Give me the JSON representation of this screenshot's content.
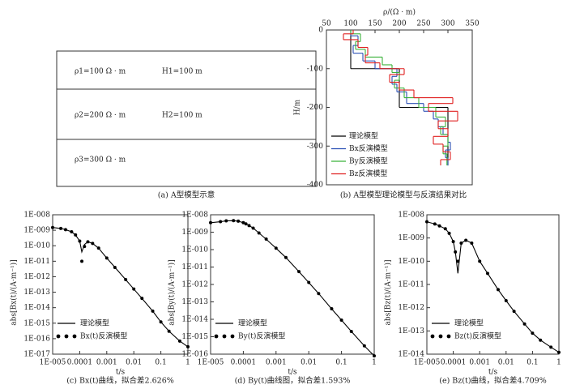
{
  "diagram": {
    "layers": [
      {
        "rho": "ρ1=100 Ω · m",
        "thickness": "H1=100 m"
      },
      {
        "rho": "ρ2=200 Ω · m",
        "thickness": "H2=100 m"
      },
      {
        "rho": "ρ3=300 Ω · m"
      }
    ],
    "caption": "(a) A型模型示意"
  },
  "chart_data": [
    {
      "type": "step",
      "caption": "(b) A型模型理论模型与反演结果对比",
      "x_label": "ρ/(Ω · m)",
      "y_label": "H/m",
      "xlim": [
        50,
        350
      ],
      "xticks": [
        50,
        100,
        150,
        200,
        250,
        300,
        350
      ],
      "ylim": [
        -400,
        0
      ],
      "yticks": [
        0,
        -100,
        -200,
        -300,
        -400
      ],
      "legend": "lower left",
      "series": [
        {
          "name": "理论模型",
          "color": "#000000",
          "values": [
            100,
            200,
            300
          ],
          "depths": [
            -100,
            -200,
            -350
          ]
        },
        {
          "name": "Bx反演模型",
          "color": "#2a4fb5",
          "values": [
            100,
            115,
            105,
            125,
            150,
            195,
            185,
            195,
            215,
            250,
            270,
            280,
            290,
            300,
            305,
            295,
            300
          ],
          "depths": [
            -15,
            -40,
            -60,
            -80,
            -100,
            -120,
            -140,
            -160,
            -190,
            -210,
            -230,
            -250,
            -270,
            -290,
            -310,
            -330,
            -350
          ]
        },
        {
          "name": "By反演模型",
          "color": "#3bb23b",
          "values": [
            100,
            120,
            110,
            130,
            165,
            185,
            200,
            190,
            210,
            240,
            275,
            295,
            285,
            300,
            290,
            298
          ],
          "depths": [
            -10,
            -30,
            -50,
            -70,
            -90,
            -110,
            -130,
            -150,
            -175,
            -200,
            -225,
            -250,
            -270,
            -300,
            -320,
            -350
          ]
        },
        {
          "name": "Bz反演模型",
          "color": "#e02020",
          "values": [
            105,
            85,
            115,
            135,
            130,
            160,
            210,
            180,
            200,
            230,
            310,
            260,
            320,
            280,
            300,
            270,
            290,
            305,
            285
          ],
          "depths": [
            -10,
            -25,
            -45,
            -65,
            -85,
            -100,
            -115,
            -135,
            -155,
            -175,
            -190,
            -210,
            -235,
            -255,
            -275,
            -295,
            -315,
            -335,
            -350
          ]
        }
      ]
    },
    {
      "type": "loglog",
      "caption": "(c) Bx(t)曲线，拟合差2.626%",
      "x_label": "t/s",
      "y_label": "abs[Bx(t)/(A·m⁻¹)]",
      "log": true,
      "legend": "lower left",
      "xlim": [
        1e-05,
        1
      ],
      "xticks": [
        {
          "value": 1e-05,
          "label": "1E-005"
        },
        0.0001,
        0.001,
        0.01,
        0.1,
        1
      ],
      "ylim": [
        1e-17,
        1e-08
      ],
      "yticks": [
        {
          "value": 1e-17,
          "label": "1E-017"
        },
        {
          "value": 1e-16,
          "label": "1E-016"
        },
        {
          "value": 1e-15,
          "label": "1E-015"
        },
        {
          "value": 1e-14,
          "label": "1E-014"
        },
        {
          "value": 1e-13,
          "label": "1E-013"
        },
        {
          "value": 1e-12,
          "label": "1E-012"
        },
        {
          "value": 1e-11,
          "label": "1E-011"
        },
        {
          "value": 1e-10,
          "label": "1E-010"
        },
        {
          "value": 1e-09,
          "label": "1E-009"
        },
        {
          "value": 1e-08,
          "label": "1E-008"
        }
      ],
      "x": [
        1e-05,
        2e-05,
        3e-05,
        5e-05,
        7e-05,
        0.0001,
        0.00012,
        0.00015,
        0.0002,
        0.0003,
        0.0005,
        0.001,
        0.002,
        0.005,
        0.01,
        0.02,
        0.05,
        0.1,
        0.2,
        0.5,
        1
      ],
      "series": [
        {
          "name": "理论模型",
          "color": "#000000",
          "mode": "line",
          "values": [
            1.5e-09,
            1.3e-09,
            1.1e-09,
            8e-10,
            5e-10,
            2e-10,
            4e-11,
            1.2e-10,
            1.8e-10,
            1.4e-10,
            7e-11,
            1.6e-11,
            4e-12,
            6.5e-13,
            1.6e-13,
            4e-14,
            6e-15,
            1.2e-15,
            3e-16,
            7e-17,
            3e-17
          ]
        },
        {
          "name": "Bx(t)反演模型",
          "color": "#000000",
          "mode": "markers",
          "values": [
            1.5e-09,
            1.3e-09,
            1.1e-09,
            8e-10,
            5e-10,
            2e-10,
            1e-11,
            9e-11,
            1.8e-10,
            1.4e-10,
            7e-11,
            1.6e-11,
            4e-12,
            6.5e-13,
            1.6e-13,
            4e-14,
            6e-15,
            1.2e-15,
            3e-16,
            7e-17,
            3e-17
          ]
        }
      ]
    },
    {
      "type": "loglog",
      "caption": "(d) By(t)曲线图，拟合差1.593%",
      "x_label": "t/s",
      "y_label": "abs[By(t)/(A·m⁻¹)]",
      "log": true,
      "legend": "lower left",
      "xlim": [
        1e-05,
        1
      ],
      "xticks": [
        {
          "value": 1e-05,
          "label": "1E-005"
        },
        0.0001,
        0.001,
        0.01,
        0.1,
        1
      ],
      "ylim": [
        1e-16,
        1e-08
      ],
      "yticks": [
        {
          "value": 1e-16,
          "label": "1E-016"
        },
        {
          "value": 1e-15,
          "label": "1E-015"
        },
        {
          "value": 1e-14,
          "label": "1E-014"
        },
        {
          "value": 1e-13,
          "label": "1E-013"
        },
        {
          "value": 1e-12,
          "label": "1E-012"
        },
        {
          "value": 1e-11,
          "label": "1E-011"
        },
        {
          "value": 1e-10,
          "label": "1E-010"
        },
        {
          "value": 1e-09,
          "label": "1E-009"
        },
        {
          "value": 1e-08,
          "label": "1E-008"
        }
      ],
      "x": [
        1e-05,
        2e-05,
        3e-05,
        5e-05,
        7e-05,
        0.0001,
        0.00012,
        0.00015,
        0.0002,
        0.0003,
        0.0005,
        0.001,
        0.002,
        0.005,
        0.01,
        0.02,
        0.05,
        0.1,
        0.2,
        0.5,
        1
      ],
      "series": [
        {
          "name": "理论模型",
          "color": "#000000",
          "mode": "line",
          "values": [
            3.5e-09,
            4e-09,
            4.5e-09,
            4.6e-09,
            4.3e-09,
            3.5e-09,
            3e-09,
            2.4e-09,
            1.7e-09,
            9e-10,
            4e-10,
            1.2e-10,
            3.5e-11,
            5.5e-12,
            1.3e-12,
            3e-13,
            4e-14,
            9e-15,
            2e-15,
            3e-16,
            8e-17
          ]
        },
        {
          "name": "By(t)反演模型",
          "color": "#000000",
          "mode": "markers",
          "values": [
            3.5e-09,
            4e-09,
            4.5e-09,
            4.6e-09,
            4.3e-09,
            3.5e-09,
            3e-09,
            2.4e-09,
            1.7e-09,
            9e-10,
            4e-10,
            1.2e-10,
            3.5e-11,
            5.5e-12,
            1.3e-12,
            3e-13,
            4e-14,
            9e-15,
            2e-15,
            3e-16,
            8e-17
          ]
        }
      ]
    },
    {
      "type": "loglog",
      "caption": "(e) Bz(t)曲线，拟合差4.709%",
      "x_label": "t/s",
      "y_label": "abs[Bz(t)/(A·m⁻¹)]",
      "log": true,
      "legend": "lower left",
      "xlim": [
        1e-05,
        1
      ],
      "xticks": [
        {
          "value": 1e-05,
          "label": "1E-005"
        },
        0.0001,
        0.001,
        0.01,
        0.1,
        1
      ],
      "ylim": [
        1e-14,
        1e-08
      ],
      "yticks": [
        {
          "value": 1e-14,
          "label": "1E-014"
        },
        {
          "value": 1e-13,
          "label": "1E-013"
        },
        {
          "value": 1e-12,
          "label": "1E-012"
        },
        {
          "value": 1e-11,
          "label": "1E-011"
        },
        {
          "value": 1e-10,
          "label": "1E-010"
        },
        {
          "value": 1e-09,
          "label": "1E-009"
        },
        {
          "value": 1e-08,
          "label": "1E-008"
        }
      ],
      "x": [
        1e-05,
        2e-05,
        3e-05,
        5e-05,
        7e-05,
        0.0001,
        0.00012,
        0.00015,
        0.0002,
        0.0003,
        0.0005,
        0.001,
        0.002,
        0.005,
        0.01,
        0.02,
        0.05,
        0.1,
        0.2,
        0.5,
        1
      ],
      "series": [
        {
          "name": "理论模型",
          "color": "#000000",
          "mode": "line",
          "values": [
            5e-09,
            4e-09,
            3.3e-09,
            2.5e-09,
            1.6e-09,
            7e-10,
            2.5e-10,
            3e-11,
            6e-10,
            8e-10,
            6e-10,
            1e-10,
            3e-11,
            6e-12,
            2e-12,
            7e-13,
            2e-13,
            8e-14,
            4e-14,
            2e-14,
            1.2e-14
          ]
        },
        {
          "name": "Bz(t)反演模型",
          "color": "#000000",
          "mode": "markers",
          "values": [
            5e-09,
            4e-09,
            3.3e-09,
            2.5e-09,
            1.6e-09,
            7e-10,
            2.5e-10,
            1e-10,
            6e-10,
            8e-10,
            6e-10,
            1e-10,
            3e-11,
            6e-12,
            2e-12,
            7e-13,
            2e-13,
            8e-14,
            4e-14,
            2e-14,
            1.2e-14
          ]
        }
      ]
    }
  ]
}
